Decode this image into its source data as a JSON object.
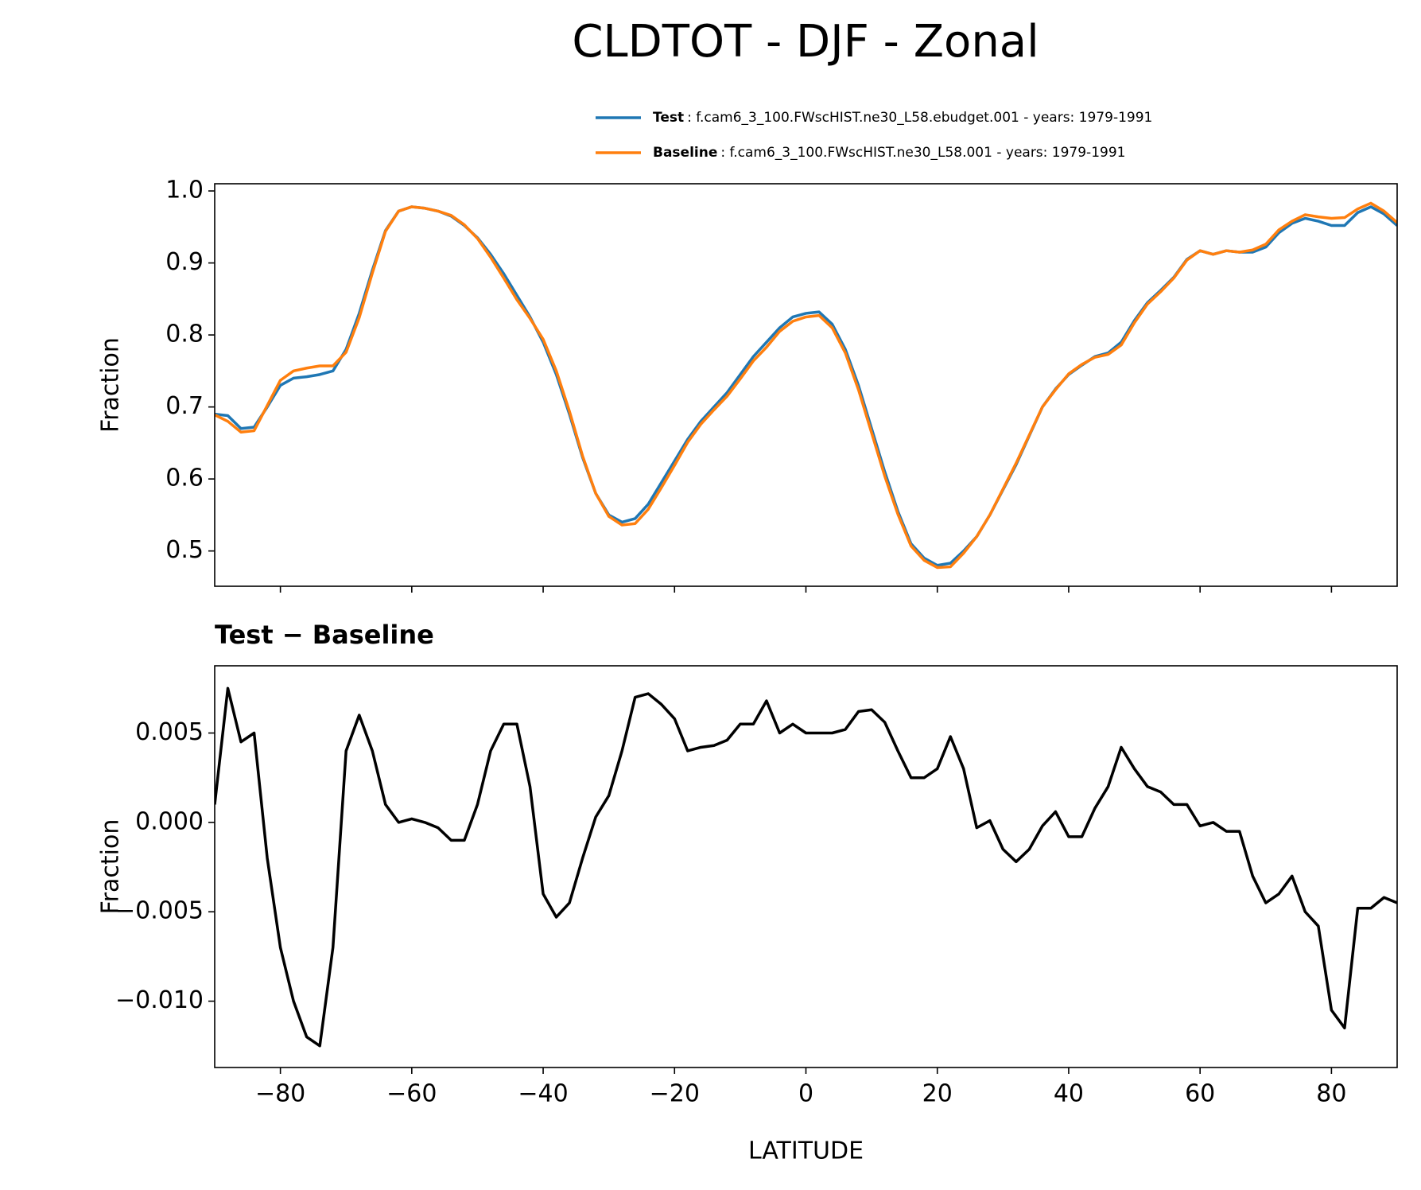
{
  "title": "CLDTOT - DJF - Zonal",
  "chart_data": [
    {
      "type": "line",
      "x": [
        -90,
        -88,
        -86,
        -84,
        -82,
        -80,
        -78,
        -76,
        -74,
        -72,
        -70,
        -68,
        -66,
        -64,
        -62,
        -60,
        -58,
        -56,
        -54,
        -52,
        -50,
        -48,
        -46,
        -44,
        -42,
        -40,
        -38,
        -36,
        -34,
        -32,
        -30,
        -28,
        -26,
        -24,
        -22,
        -20,
        -18,
        -16,
        -14,
        -12,
        -10,
        -8,
        -6,
        -4,
        -2,
        0,
        2,
        4,
        6,
        8,
        10,
        12,
        14,
        16,
        18,
        20,
        22,
        24,
        26,
        28,
        30,
        32,
        34,
        36,
        38,
        40,
        42,
        44,
        46,
        48,
        50,
        52,
        54,
        56,
        58,
        60,
        62,
        64,
        66,
        68,
        70,
        72,
        74,
        76,
        78,
        80,
        82,
        84,
        86,
        88,
        90
      ],
      "series": [
        {
          "name": "Test",
          "description": ": f.cam6_3_100.FWscHIST.ne30_L58.ebudget.001 - years: 1979-1991",
          "color": "#1f77b4",
          "values": [
            0.69,
            0.688,
            0.67,
            0.672,
            0.7,
            0.73,
            0.74,
            0.742,
            0.745,
            0.75,
            0.78,
            0.83,
            0.89,
            0.945,
            0.972,
            0.978,
            0.976,
            0.972,
            0.965,
            0.952,
            0.935,
            0.912,
            0.885,
            0.855,
            0.825,
            0.79,
            0.745,
            0.69,
            0.63,
            0.58,
            0.55,
            0.54,
            0.545,
            0.565,
            0.595,
            0.625,
            0.655,
            0.68,
            0.7,
            0.72,
            0.745,
            0.77,
            0.79,
            0.81,
            0.825,
            0.83,
            0.832,
            0.815,
            0.78,
            0.73,
            0.67,
            0.61,
            0.555,
            0.51,
            0.49,
            0.48,
            0.483,
            0.5,
            0.52,
            0.55,
            0.585,
            0.62,
            0.66,
            0.7,
            0.725,
            0.745,
            0.758,
            0.77,
            0.775,
            0.79,
            0.82,
            0.845,
            0.862,
            0.88,
            0.905,
            0.917,
            0.912,
            0.917,
            0.915,
            0.915,
            0.922,
            0.942,
            0.955,
            0.962,
            0.958,
            0.952,
            0.952,
            0.97,
            0.978,
            0.968,
            0.952
          ]
        },
        {
          "name": "Baseline",
          "description": ": f.cam6_3_100.FWscHIST.ne30_L58.001 - years: 1979-1991",
          "color": "#ff7f0e",
          "values": [
            0.689,
            0.68,
            0.665,
            0.667,
            0.702,
            0.737,
            0.75,
            0.754,
            0.757,
            0.757,
            0.776,
            0.824,
            0.886,
            0.944,
            0.972,
            0.978,
            0.976,
            0.972,
            0.966,
            0.953,
            0.934,
            0.908,
            0.879,
            0.849,
            0.823,
            0.794,
            0.75,
            0.694,
            0.632,
            0.58,
            0.548,
            0.536,
            0.538,
            0.558,
            0.588,
            0.619,
            0.651,
            0.676,
            0.696,
            0.715,
            0.739,
            0.764,
            0.783,
            0.805,
            0.819,
            0.825,
            0.827,
            0.81,
            0.775,
            0.724,
            0.664,
            0.604,
            0.551,
            0.507,
            0.487,
            0.477,
            0.478,
            0.497,
            0.52,
            0.55,
            0.586,
            0.622,
            0.661,
            0.7,
            0.724,
            0.746,
            0.759,
            0.769,
            0.773,
            0.786,
            0.817,
            0.843,
            0.86,
            0.879,
            0.904,
            0.917,
            0.912,
            0.917,
            0.915,
            0.918,
            0.926,
            0.946,
            0.958,
            0.967,
            0.964,
            0.962,
            0.963,
            0.975,
            0.983,
            0.972,
            0.956
          ]
        }
      ],
      "ylabel": "Fraction",
      "xlim": [
        -90,
        90
      ],
      "xticks": [
        -80,
        -60,
        -40,
        -20,
        0,
        20,
        40,
        60,
        80
      ],
      "ylim": [
        0.451,
        1.01
      ],
      "yticks": [
        0.5,
        0.6,
        0.7,
        0.8,
        0.9,
        {
          "value": 1,
          "label": "1.0"
        }
      ]
    },
    {
      "type": "line",
      "title": "Test − Baseline",
      "x": [
        -90,
        -88,
        -86,
        -84,
        -82,
        -80,
        -78,
        -76,
        -74,
        -72,
        -70,
        -68,
        -66,
        -64,
        -62,
        -60,
        -58,
        -56,
        -54,
        -52,
        -50,
        -48,
        -46,
        -44,
        -42,
        -40,
        -38,
        -36,
        -34,
        -32,
        -30,
        -28,
        -26,
        -24,
        -22,
        -20,
        -18,
        -16,
        -14,
        -12,
        -10,
        -8,
        -6,
        -4,
        -2,
        0,
        2,
        4,
        6,
        8,
        10,
        12,
        14,
        16,
        18,
        20,
        22,
        24,
        26,
        28,
        30,
        32,
        34,
        36,
        38,
        40,
        42,
        44,
        46,
        48,
        50,
        52,
        54,
        56,
        58,
        60,
        62,
        64,
        66,
        68,
        70,
        72,
        74,
        76,
        78,
        80,
        82,
        84,
        86,
        88,
        90
      ],
      "series": [
        {
          "color": "#000000",
          "values": [
            0.001,
            0.0075,
            0.0045,
            0.005,
            -0.002,
            -0.007,
            -0.01,
            -0.012,
            -0.0125,
            -0.007,
            0.004,
            0.006,
            0.004,
            0.001,
            0.0,
            0.0002,
            0.0,
            -0.0003,
            -0.001,
            -0.001,
            0.001,
            0.004,
            0.0055,
            0.0055,
            0.002,
            -0.004,
            -0.0053,
            -0.0045,
            -0.002,
            0.0003,
            0.0015,
            0.004,
            0.007,
            0.0072,
            0.0066,
            0.0058,
            0.004,
            0.0042,
            0.0043,
            0.0046,
            0.0055,
            0.0055,
            0.0068,
            0.005,
            0.0055,
            0.005,
            0.005,
            0.005,
            0.0052,
            0.0062,
            0.0063,
            0.0056,
            0.004,
            0.0025,
            0.0025,
            0.003,
            0.0048,
            0.003,
            -0.0003,
            0.0001,
            -0.0015,
            -0.0022,
            -0.0015,
            -0.0002,
            0.0006,
            -0.0008,
            -0.0008,
            0.0008,
            0.002,
            0.0042,
            0.003,
            0.002,
            0.0017,
            0.001,
            0.001,
            -0.0002,
            0.0,
            -0.0005,
            -0.0005,
            -0.003,
            -0.0045,
            -0.004,
            -0.003,
            -0.005,
            -0.0058,
            -0.0105,
            -0.0115,
            -0.0048,
            -0.0048,
            -0.0042,
            -0.0045
          ]
        }
      ],
      "xlabel": "LATITUDE",
      "ylabel": "Fraction",
      "xlim": [
        -90,
        90
      ],
      "xticks": [
        -80,
        -60,
        -40,
        -20,
        0,
        20,
        40,
        60,
        80
      ],
      "ylim": [
        -0.01371,
        0.00876
      ],
      "yticks": [
        {
          "value": -0.01,
          "label": "−0.010"
        },
        {
          "value": -0.005,
          "label": "−0.005"
        },
        {
          "value": 0,
          "label": "0.000"
        },
        0.005
      ]
    }
  ]
}
